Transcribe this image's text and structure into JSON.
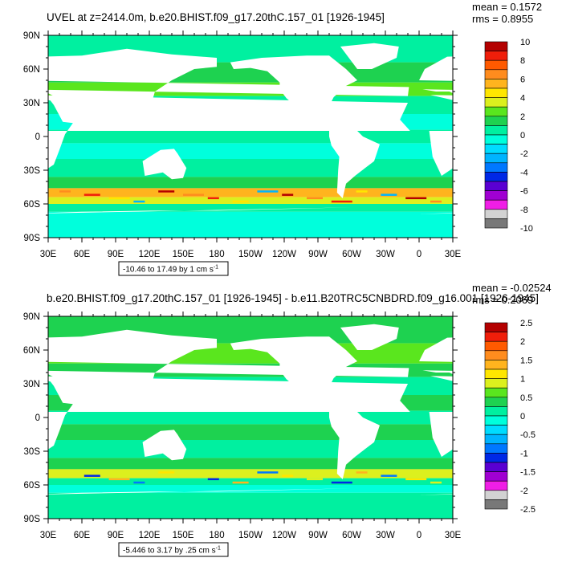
{
  "chart_data": [
    {
      "type": "heatmap",
      "title": "UVEL at z=2414.0m, b.e20.BHIST.f09_g17.20thC.157_01 [1926-1945]",
      "stats": {
        "mean": "mean = 0.1572",
        "rms": "rms = 0.8955"
      },
      "contour_info": "-10.46 to 17.49 by 1 cm s",
      "contour_info_sup": "-1",
      "xlim": [
        30,
        390
      ],
      "ylim": [
        -90,
        90
      ],
      "x_ticks": [
        30,
        60,
        90,
        120,
        150,
        180,
        210,
        240,
        270,
        300,
        330,
        360,
        390
      ],
      "x_tick_labels": [
        "30E",
        "60E",
        "90E",
        "120E",
        "150E",
        "180",
        "150W",
        "120W",
        "90W",
        "60W",
        "30W",
        "0",
        "30E"
      ],
      "y_ticks": [
        90,
        60,
        30,
        0,
        -30,
        -60,
        -90
      ],
      "y_tick_labels": [
        "90N",
        "60N",
        "30N",
        "0",
        "30S",
        "60S",
        "90S"
      ],
      "colorbar": {
        "labels": [
          "10",
          "8",
          "6",
          "4",
          "2",
          "0",
          "-2",
          "-4",
          "-6",
          "-8",
          "-10"
        ],
        "colors": [
          "#b40000",
          "#f01e0a",
          "#ff5a00",
          "#ff8c1e",
          "#ffb41e",
          "#ffe600",
          "#dcf01e",
          "#5ae61e",
          "#1ed250",
          "#00f0a0",
          "#00ffdc",
          "#00dcff",
          "#00b4ff",
          "#0078ff",
          "#0028e6",
          "#5a00d2",
          "#a000d2",
          "#f01ee6",
          "#d2d2d2",
          "#787878"
        ]
      }
    },
    {
      "type": "heatmap",
      "title": "b.e20.BHIST.f09_g17.20thC.157_01 [1926-1945] - b.e11.B20TRC5CNBDRD.f09_g16.001 [1926-1945]",
      "stats": {
        "mean": "mean = -0.02524",
        "rms": "rms = 0.2069"
      },
      "contour_info": "-5.446 to 3.17 by .25 cm s",
      "contour_info_sup": "-1",
      "xlim": [
        30,
        390
      ],
      "ylim": [
        -90,
        90
      ],
      "x_ticks": [
        30,
        60,
        90,
        120,
        150,
        180,
        210,
        240,
        270,
        300,
        330,
        360,
        390
      ],
      "x_tick_labels": [
        "30E",
        "60E",
        "90E",
        "120E",
        "150E",
        "180",
        "150W",
        "120W",
        "90W",
        "60W",
        "30W",
        "0",
        "30E"
      ],
      "y_ticks": [
        90,
        60,
        30,
        0,
        -30,
        -60,
        -90
      ],
      "y_tick_labels": [
        "90N",
        "60N",
        "30N",
        "0",
        "30S",
        "60S",
        "90S"
      ],
      "colorbar": {
        "labels": [
          "2.5",
          "2",
          "1.5",
          "1",
          "0.5",
          "0",
          "-0.5",
          "-1",
          "-1.5",
          "-2",
          "-2.5"
        ],
        "colors": [
          "#b40000",
          "#f01e0a",
          "#ff5a00",
          "#ff8c1e",
          "#ffb41e",
          "#ffe600",
          "#dcf01e",
          "#5ae61e",
          "#1ed250",
          "#00f0a0",
          "#00ffdc",
          "#00dcff",
          "#00b4ff",
          "#0078ff",
          "#0028e6",
          "#5a00d2",
          "#a000d2",
          "#f01ee6",
          "#d2d2d2",
          "#787878"
        ]
      }
    }
  ]
}
